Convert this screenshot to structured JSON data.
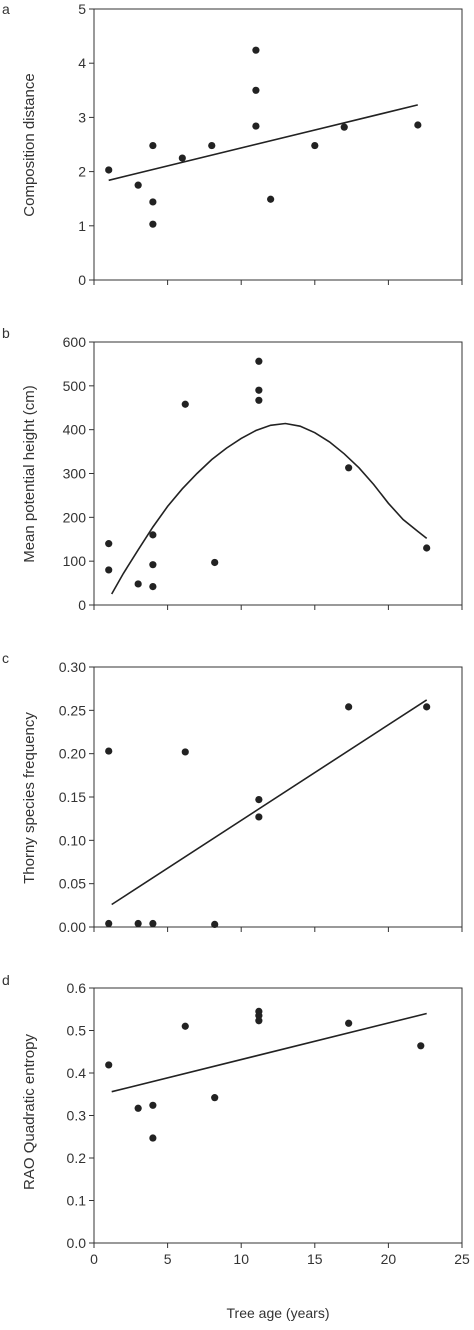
{
  "shared_xlabel": "Tree age (years)",
  "shared_xticks": [
    "0",
    "5",
    "10",
    "15",
    "20",
    "25"
  ],
  "colors": {
    "axis": "#333333",
    "point": "#222222",
    "line": "#222222"
  },
  "chart_data": [
    {
      "panel_label": "a",
      "type": "scatter",
      "ylabel": "Composition distance",
      "xlim": [
        0,
        25
      ],
      "ylim": [
        0,
        5
      ],
      "yticks": [
        "0",
        "1",
        "2",
        "3",
        "4",
        "5"
      ],
      "points": [
        {
          "x": 1,
          "y": 2.03
        },
        {
          "x": 3,
          "y": 1.75
        },
        {
          "x": 4,
          "y": 2.48
        },
        {
          "x": 4,
          "y": 1.44
        },
        {
          "x": 4,
          "y": 1.03
        },
        {
          "x": 6,
          "y": 2.25
        },
        {
          "x": 8,
          "y": 2.48
        },
        {
          "x": 11,
          "y": 4.24
        },
        {
          "x": 11,
          "y": 3.5
        },
        {
          "x": 11,
          "y": 2.84
        },
        {
          "x": 12,
          "y": 1.49
        },
        {
          "x": 15,
          "y": 2.48
        },
        {
          "x": 17,
          "y": 2.82
        },
        {
          "x": 22,
          "y": 2.86
        }
      ],
      "fit": {
        "kind": "linear",
        "x": [
          1,
          22
        ],
        "y": [
          1.84,
          3.23
        ]
      }
    },
    {
      "panel_label": "b",
      "type": "scatter",
      "ylabel": "Mean potential height (cm)",
      "xlim": [
        0,
        25
      ],
      "ylim": [
        0,
        600
      ],
      "yticks": [
        "0",
        "100",
        "200",
        "300",
        "400",
        "500",
        "600"
      ],
      "points": [
        {
          "x": 1,
          "y": 140
        },
        {
          "x": 1,
          "y": 80
        },
        {
          "x": 3,
          "y": 48
        },
        {
          "x": 4,
          "y": 160
        },
        {
          "x": 4,
          "y": 92
        },
        {
          "x": 4,
          "y": 42
        },
        {
          "x": 6.2,
          "y": 458
        },
        {
          "x": 8.2,
          "y": 97
        },
        {
          "x": 11.2,
          "y": 556
        },
        {
          "x": 11.2,
          "y": 490
        },
        {
          "x": 11.2,
          "y": 467
        },
        {
          "x": 17.3,
          "y": 313
        },
        {
          "x": 22.6,
          "y": 130
        }
      ],
      "fit": {
        "kind": "quadratic",
        "x": [
          1.2,
          2,
          3,
          4,
          5,
          6,
          7,
          8,
          9,
          10,
          11,
          12,
          13,
          14,
          15,
          16,
          17,
          18,
          19,
          20,
          21,
          22,
          22.6
        ],
        "y": [
          25,
          72,
          126,
          178,
          225,
          265,
          300,
          332,
          358,
          380,
          398,
          410,
          414,
          408,
          393,
          372,
          345,
          313,
          275,
          232,
          195,
          168,
          152
        ]
      }
    },
    {
      "panel_label": "c",
      "type": "scatter",
      "ylabel": "Thorny species frequency",
      "xlim": [
        0,
        25
      ],
      "ylim": [
        0,
        0.3
      ],
      "yticks": [
        "0.00",
        "0.05",
        "0.10",
        "0.15",
        "0.20",
        "0.25",
        "0.30"
      ],
      "points": [
        {
          "x": 1,
          "y": 0.203
        },
        {
          "x": 1,
          "y": 0.004
        },
        {
          "x": 3,
          "y": 0.004
        },
        {
          "x": 4,
          "y": 0.004
        },
        {
          "x": 6.2,
          "y": 0.202
        },
        {
          "x": 8.2,
          "y": 0.003
        },
        {
          "x": 11.2,
          "y": 0.147
        },
        {
          "x": 11.2,
          "y": 0.127
        },
        {
          "x": 17.3,
          "y": 0.254
        },
        {
          "x": 22.6,
          "y": 0.254
        }
      ],
      "fit": {
        "kind": "linear",
        "x": [
          1.2,
          22.6
        ],
        "y": [
          0.026,
          0.262
        ]
      }
    },
    {
      "panel_label": "d",
      "type": "scatter",
      "ylabel": "RAO Quadratic entropy",
      "xlim": [
        0,
        25
      ],
      "ylim": [
        0,
        0.6
      ],
      "yticks": [
        "0.0",
        "0.1",
        "0.2",
        "0.3",
        "0.4",
        "0.5",
        "0.6"
      ],
      "points": [
        {
          "x": 1,
          "y": 0.419
        },
        {
          "x": 3,
          "y": 0.317
        },
        {
          "x": 4,
          "y": 0.324
        },
        {
          "x": 4,
          "y": 0.247
        },
        {
          "x": 6.2,
          "y": 0.51
        },
        {
          "x": 8.2,
          "y": 0.342
        },
        {
          "x": 11.2,
          "y": 0.545
        },
        {
          "x": 11.2,
          "y": 0.535
        },
        {
          "x": 11.2,
          "y": 0.523
        },
        {
          "x": 17.3,
          "y": 0.517
        },
        {
          "x": 22.2,
          "y": 0.464
        }
      ],
      "fit": {
        "kind": "linear",
        "x": [
          1.2,
          22.6
        ],
        "y": [
          0.356,
          0.54
        ]
      }
    }
  ]
}
